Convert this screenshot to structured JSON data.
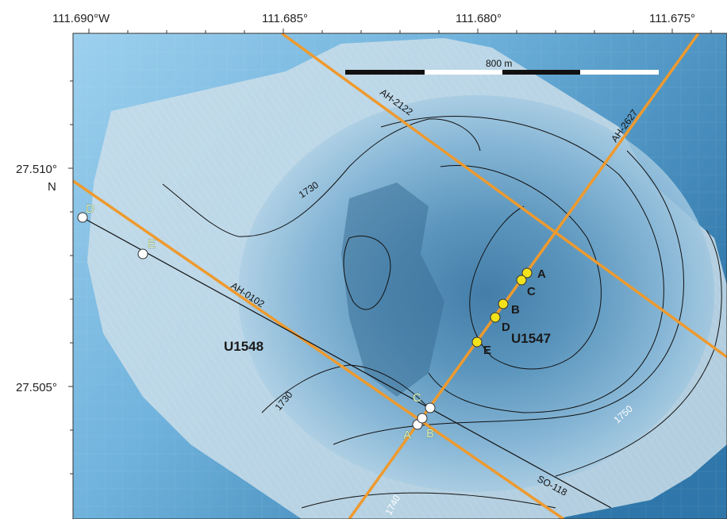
{
  "axes": {
    "top_ticks": [
      "111.690°W",
      "111.685°",
      "111.680°",
      "111.675°"
    ],
    "left_ticks": [
      "27.510°",
      "27.505°"
    ],
    "left_unit": "N"
  },
  "scale_bar": {
    "label": "800 m"
  },
  "seismic_lines": [
    "AH-2122",
    "AH-2627",
    "AH-0102",
    "SO-118"
  ],
  "contours": [
    "1730",
    "1730",
    "1740",
    "1750"
  ],
  "sites": [
    "U1548",
    "U1547"
  ],
  "points_u1547_yellow": [
    "A",
    "C",
    "B",
    "D",
    "E"
  ],
  "points_u1548_white": [
    "D",
    "E",
    "C",
    "A",
    "B"
  ],
  "colors": {
    "line_orange": "#ee9a2e",
    "point_yellow": "#f2e21a",
    "point_white": "#ffffff",
    "water_light": "#8ec3e6",
    "water_deep": "#1f5d8c"
  }
}
